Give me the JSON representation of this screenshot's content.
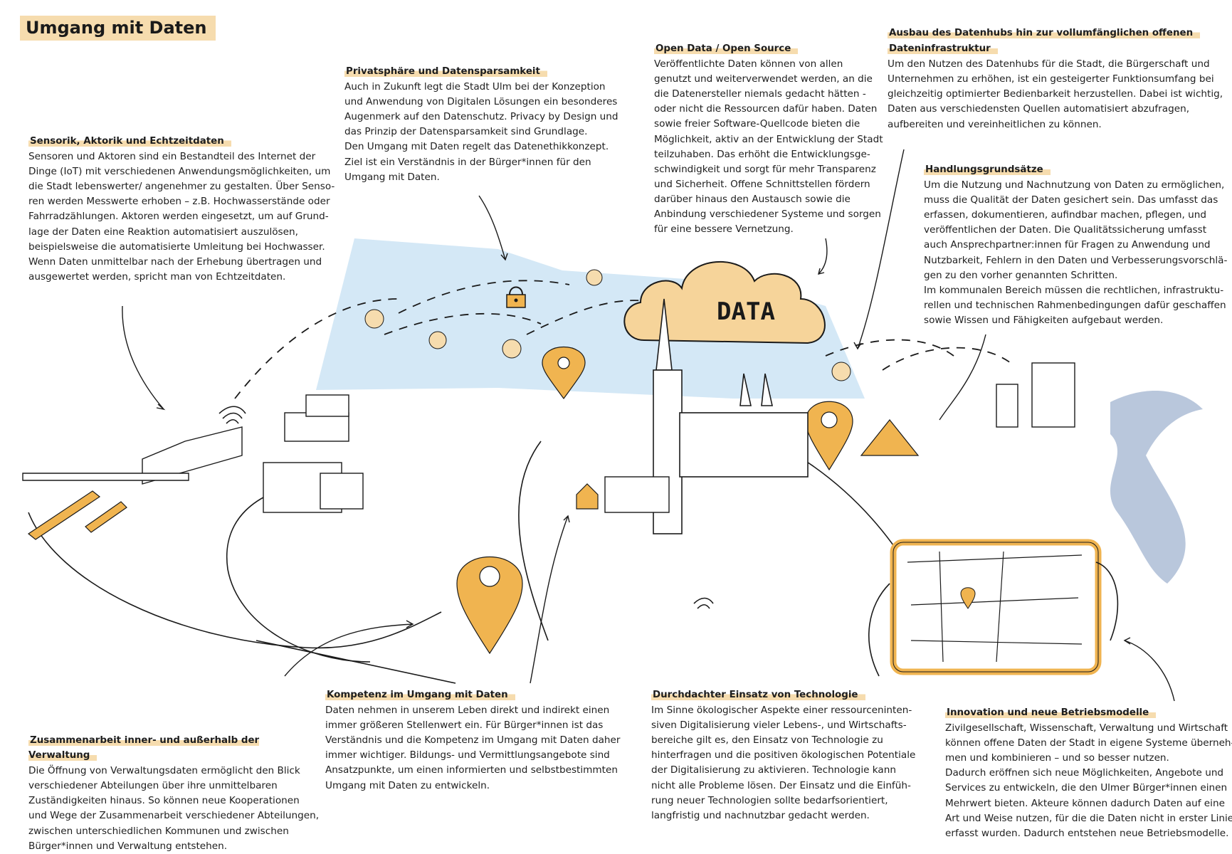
{
  "page": {
    "title": "Umgang mit Daten"
  },
  "illustration": {
    "cloud_label": "DATA"
  },
  "sections": [
    {
      "id": "sensorik",
      "heading": "Sensorik, Aktorik und Echtzeitdaten",
      "lines": [
        "Sensoren und Aktoren sind ein Bestandteil des Internet der",
        "Dinge (IoT) mit verschiedenen Anwendungsmöglichkeiten, um",
        "die Stadt lebenswerter/ angenehmer zu gestalten. Über Senso-",
        "ren werden Messwerte erhoben – z.B. Hochwasserstände oder",
        "Fahrradzählungen. Aktoren werden eingesetzt, um auf Grund-",
        "lage der Daten eine Reaktion automatisiert auszulösen,",
        "beispielsweise die automatisierte Umleitung bei Hochwasser.",
        "Wenn Daten unmittelbar nach der Erhebung übertragen und",
        "ausgewertet werden, spricht man von Echtzeitdaten."
      ]
    },
    {
      "id": "privatsphaere",
      "heading": "Privatsphäre und Datensparsamkeit",
      "lines": [
        "Auch in Zukunft legt die Stadt Ulm bei der Konzeption",
        "und Anwendung von Digitalen Lösungen ein besonderes",
        "Augenmerk auf den Datenschutz. Privacy by Design und",
        "das Prinzip der Datensparsamkeit sind Grundlage.",
        "Den Umgang mit Daten regelt das Datenethikkonzept.",
        "Ziel ist ein Verständnis in der Bürger*innen für den",
        "Umgang mit Daten."
      ]
    },
    {
      "id": "opendata",
      "heading": "Open Data / Open Source",
      "lines": [
        "Veröffentlichte Daten können von allen",
        "genutzt und weiterverwendet werden, an die",
        "die Datenersteller niemals gedacht hätten -",
        "oder nicht die Ressourcen dafür haben. Daten",
        "sowie freier Software-Quellcode bieten die",
        "Möglichkeit, aktiv an der Entwicklung der Stadt",
        "teilzuhaben. Das erhöht die Entwicklungsge-",
        "schwindigkeit und sorgt für mehr Transparenz",
        "und Sicherheit. Offene Schnittstellen fördern",
        "darüber hinaus den Austausch sowie die",
        "Anbindung verschiedener Systeme und sorgen",
        "für eine bessere Vernetzung."
      ]
    },
    {
      "id": "datenhub",
      "heading_lines": [
        "Ausbau des Datenhubs hin zur vollumfänglichen offenen",
        "Dateninfrastruktur"
      ],
      "lines": [
        "Um den Nutzen des Datenhubs für die Stadt, die Bürgerschaft und",
        "Unternehmen zu erhöhen, ist ein gesteigerter Funktionsumfang bei",
        "gleichzeitig optimierter Bedienbarkeit herzustellen. Dabei ist wichtig,",
        "Daten aus verschiedensten Quellen automatisiert abzufragen,",
        "aufbereiten und vereinheitlichen zu können."
      ]
    },
    {
      "id": "handlung",
      "heading": "Handlungsgrundsätze",
      "lines": [
        "Um die Nutzung und Nachnutzung von Daten zu ermöglichen,",
        "muss die Qualität der Daten gesichert sein. Das umfasst das",
        "erfassen, dokumentieren, aufindbar machen, pflegen, und",
        "veröffentlichen der Daten. Die Qualitätssicherung umfasst",
        "auch Ansprechpartner:innen für Fragen zu Anwendung und",
        "Nutzbarkeit, Fehlern in den Daten und Verbesserungsvorschlä-",
        "gen zu den vorher genannten Schritten.",
        "Im kommunalen Bereich müssen die rechtlichen, infrastruktu-",
        "rellen und technischen Rahmenbedingungen dafür geschaffen",
        "sowie Wissen und Fähigkeiten aufgebaut werden."
      ]
    },
    {
      "id": "kompetenz",
      "heading": "Kompetenz im Umgang mit Daten",
      "lines": [
        "Daten nehmen in unserem Leben direkt und indirekt einen",
        "immer größeren Stellenwert ein. Für Bürger*innen ist das",
        "Verständnis und die Kompetenz im Umgang mit Daten daher",
        "immer wichtiger. Bildungs- und Vermittlungsangebote sind",
        "Ansatzpunkte, um einen informierten und selbstbestimmten",
        "Umgang mit Daten zu entwickeln."
      ]
    },
    {
      "id": "technologie",
      "heading": "Durchdachter Einsatz von Technologie",
      "lines": [
        "Im Sinne ökologischer Aspekte einer ressourceninten-",
        "siven Digitalisierung vieler Lebens-, und Wirtschafts-",
        "bereiche gilt es, den Einsatz von Technologie zu",
        "hinterfragen und die positiven ökologischen Potentiale",
        "der Digitalisierung zu aktivieren. Technologie kann",
        "nicht alle Probleme lösen. Der Einsatz und die Einfüh-",
        "rung neuer Technologien sollte bedarfsorientiert,",
        "langfristig und nachnutzbar gedacht werden."
      ]
    },
    {
      "id": "zusammenarbeit",
      "heading": "Zusammenarbeit inner- und außerhalb der Verwaltung",
      "lines": [
        "Die Öffnung von Verwaltungsdaten ermöglicht den Blick",
        "verschiedener Abteilungen über ihre unmittelbaren",
        "Zuständigkeiten hinaus. So können neue Kooperationen",
        "und Wege der Zusammenarbeit verschiedener Abteilungen,",
        "zwischen unterschiedlichen Kommunen und zwischen",
        "Bürger*innen und Verwaltung entstehen."
      ]
    },
    {
      "id": "innovation",
      "heading": "Innovation und neue Betriebsmodelle",
      "lines": [
        "Zivilgesellschaft, Wissenschaft, Verwaltung und Wirtschaft",
        "können offene Daten der Stadt in eigene Systeme überneh-",
        "men und kombinieren – und so besser nutzen.",
        "Dadurch eröffnen sich neue Möglichkeiten, Angebote und",
        "Services zu entwickeln, die den Ulmer Bürger*innen einen",
        "Mehrwert bieten. Akteure können dadurch Daten auf eine",
        "Art und Weise nutzen, für die die Daten nicht in erster Linie",
        "erfasst wurden. Dadurch entstehen neue Betriebsmodelle."
      ]
    }
  ],
  "colors": {
    "accent": "#f0b450",
    "accent_light": "#f6dcae",
    "sky": "#d4e8f6",
    "river": "#b9c7dc",
    "ink": "#1a1a1a"
  }
}
